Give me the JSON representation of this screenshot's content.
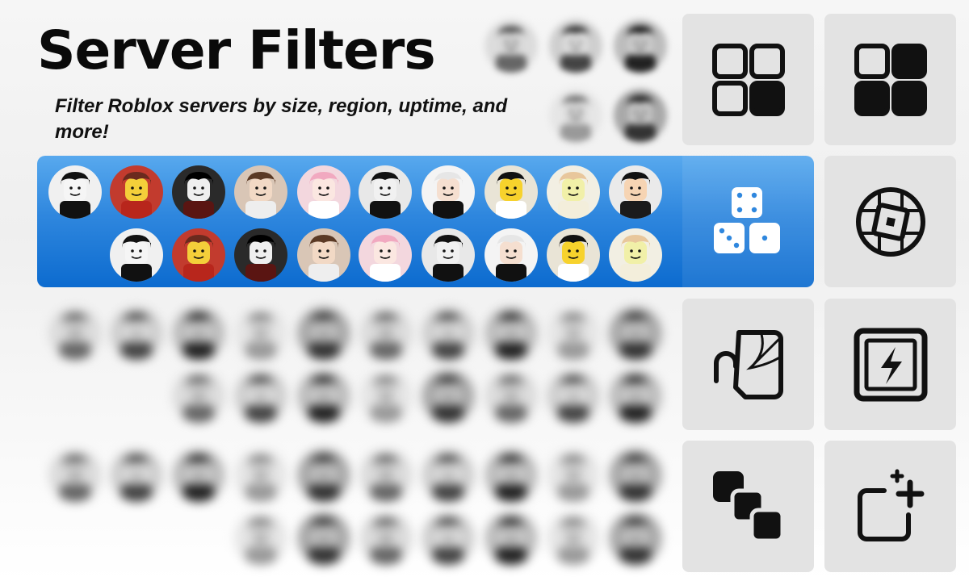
{
  "header": {
    "title": "Server Filters",
    "subtitle": "Filter Roblox servers by size, region, uptime, and more!"
  },
  "filters": [
    {
      "icon": "grid-partial-icon",
      "active": false
    },
    {
      "icon": "grid-filled-icon",
      "active": false
    },
    {
      "icon": "dice-icon",
      "active": true
    },
    {
      "icon": "globe-roblox-icon",
      "active": false
    },
    {
      "icon": "halloween-cane-web-icon",
      "active": false
    },
    {
      "icon": "lightning-bolt-icon",
      "active": false
    },
    {
      "icon": "stacked-squares-icon",
      "active": false
    },
    {
      "icon": "square-sparkle-plus-icon",
      "active": false
    }
  ],
  "colors": {
    "banner_top": "#58a9ee",
    "banner_bottom": "#0c6bcf",
    "tile_bg": "#e3e3e3",
    "icon_dark": "#111111"
  }
}
